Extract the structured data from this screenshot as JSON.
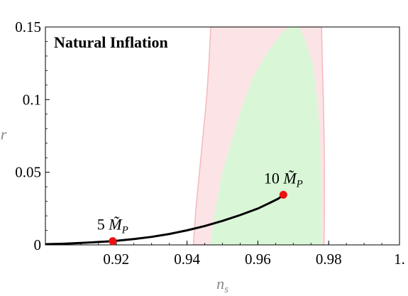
{
  "chart_data": {
    "type": "line",
    "title": "Natural Inflation",
    "xlabel": "n_s",
    "ylabel": "r",
    "xlim": [
      0.9,
      1.0
    ],
    "ylim": [
      0,
      0.15
    ],
    "x_ticks": [
      {
        "value": 0.92,
        "label": "0.92"
      },
      {
        "value": 0.94,
        "label": "0.94"
      },
      {
        "value": 0.96,
        "label": "0.96"
      },
      {
        "value": 0.98,
        "label": "0.98"
      },
      {
        "value": 1.0,
        "label": "1."
      }
    ],
    "y_ticks": [
      {
        "value": 0,
        "label": "0"
      },
      {
        "value": 0.05,
        "label": "0.05"
      },
      {
        "value": 0.1,
        "label": "0.1"
      },
      {
        "value": 0.15,
        "label": "0.15"
      }
    ],
    "regions": [
      {
        "kind": "outer-contour",
        "color": "#fce4e6",
        "edge_color": "#f4b8bc",
        "polygon": [
          [
            0.9418,
            0.0
          ],
          [
            0.9425,
            0.025
          ],
          [
            0.9435,
            0.05
          ],
          [
            0.9445,
            0.075
          ],
          [
            0.9455,
            0.1
          ],
          [
            0.9462,
            0.125
          ],
          [
            0.9467,
            0.15
          ],
          [
            0.978,
            0.15
          ],
          [
            0.9782,
            0.125
          ],
          [
            0.9785,
            0.1
          ],
          [
            0.9787,
            0.075
          ],
          [
            0.9788,
            0.05
          ],
          [
            0.9788,
            0.025
          ],
          [
            0.9787,
            0.0
          ]
        ]
      },
      {
        "kind": "inner-contour",
        "color": "#d9f7d7",
        "polygon": [
          [
            0.9465,
            0.0
          ],
          [
            0.948,
            0.025
          ],
          [
            0.95,
            0.05
          ],
          [
            0.953,
            0.075
          ],
          [
            0.9555,
            0.095
          ],
          [
            0.9585,
            0.115
          ],
          [
            0.9625,
            0.132
          ],
          [
            0.9665,
            0.145
          ],
          [
            0.9685,
            0.15
          ],
          [
            0.9718,
            0.15
          ],
          [
            0.9735,
            0.14
          ],
          [
            0.9755,
            0.125
          ],
          [
            0.9768,
            0.1
          ],
          [
            0.9775,
            0.075
          ],
          [
            0.9778,
            0.05
          ],
          [
            0.978,
            0.025
          ],
          [
            0.978,
            0.0
          ]
        ]
      }
    ],
    "series": [
      {
        "color": "#000000",
        "x": [
          0.9,
          0.905,
          0.91,
          0.915,
          0.919,
          0.925,
          0.93,
          0.935,
          0.94,
          0.945,
          0.95,
          0.955,
          0.96,
          0.963,
          0.9658,
          0.9672
        ],
        "y": [
          0.0005,
          0.0008,
          0.0013,
          0.002,
          0.0026,
          0.004,
          0.0055,
          0.0075,
          0.01,
          0.013,
          0.0165,
          0.0205,
          0.025,
          0.0285,
          0.0318,
          0.0345
        ]
      }
    ],
    "points": [
      {
        "x": 0.919,
        "y": 0.0026,
        "label": "5 M̃_P",
        "label_num": "5",
        "label_sym": "M̃",
        "label_sub": "P",
        "color": "#ee1111"
      },
      {
        "x": 0.9672,
        "y": 0.0345,
        "label": "10 M̃_P",
        "label_num": "10",
        "label_sym": "M̃",
        "label_sub": "P",
        "color": "#ee1111"
      }
    ],
    "grid": false,
    "legend": "none"
  }
}
